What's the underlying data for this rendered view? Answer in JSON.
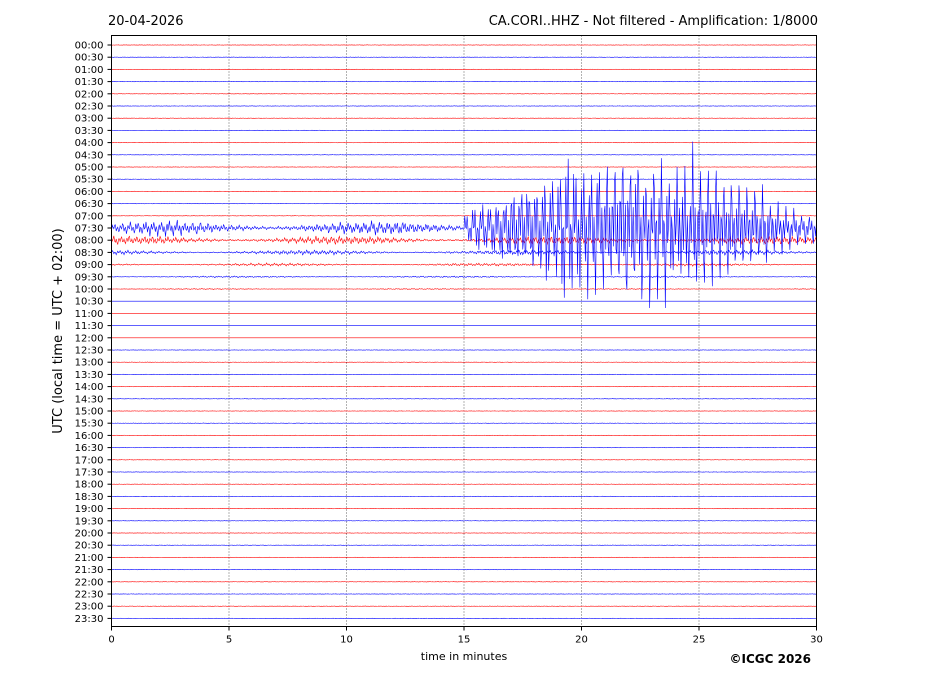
{
  "header": {
    "date": "20-04-2026",
    "title": "CA.CORI..HHZ - Not filtered - Amplification: 1/8000"
  },
  "footer": {
    "copyright": "©ICGC 2026"
  },
  "colors": {
    "trace_a": "#ff0000",
    "trace_b": "#0000ff",
    "grid": "#000000",
    "background": "#ffffff"
  },
  "chart_data": {
    "type": "line",
    "title": "CA.CORI..HHZ - Not filtered - Amplification: 1/8000",
    "xlabel": "time in minutes",
    "ylabel": "UTC (local time = UTC + 02:00)",
    "xlim": [
      0,
      30
    ],
    "x_ticks": [
      "0",
      "5",
      "10",
      "15",
      "20",
      "25",
      "30"
    ],
    "row_labels": [
      "00:00",
      "00:30",
      "01:00",
      "01:30",
      "02:00",
      "02:30",
      "03:00",
      "03:30",
      "04:00",
      "04:30",
      "05:00",
      "05:30",
      "06:00",
      "06:30",
      "07:00",
      "07:30",
      "08:00",
      "08:30",
      "09:00",
      "09:30",
      "10:00",
      "10:30",
      "11:00",
      "11:30",
      "12:00",
      "12:30",
      "13:00",
      "13:30",
      "14:00",
      "14:30",
      "15:00",
      "15:30",
      "16:00",
      "16:30",
      "17:00",
      "17:30",
      "18:00",
      "18:30",
      "19:00",
      "19:30",
      "20:00",
      "20:30",
      "21:00",
      "21:30",
      "22:00",
      "22:30",
      "23:00",
      "23:30"
    ],
    "trace_colors_alternating": [
      "#ff0000",
      "#0000ff"
    ],
    "grid": true,
    "grid_style": "dotted vertical lines every 5 minutes",
    "event": {
      "active_rows": [
        "07:30",
        "08:00",
        "08:30",
        "09:00",
        "09:30",
        "10:00",
        "10:30",
        "11:00",
        "11:30",
        "12:00"
      ],
      "strong_shaking_minutes": [
        15,
        30
      ],
      "peak_minute": 22.5,
      "peak_row": "07:30"
    }
  }
}
